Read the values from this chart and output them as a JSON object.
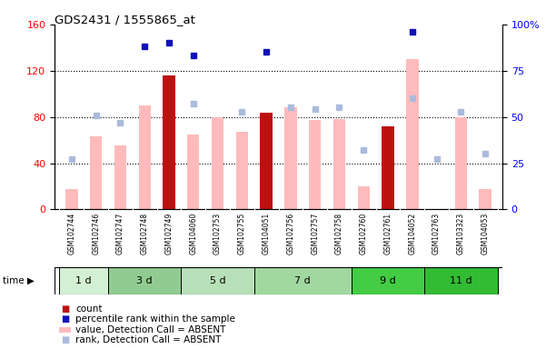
{
  "title": "GDS2431 / 1555865_at",
  "samples": [
    "GSM102744",
    "GSM102746",
    "GSM102747",
    "GSM102748",
    "GSM102749",
    "GSM104060",
    "GSM102753",
    "GSM102755",
    "GSM104051",
    "GSM102756",
    "GSM102757",
    "GSM102758",
    "GSM102760",
    "GSM102761",
    "GSM104052",
    "GSM102763",
    "GSM103323",
    "GSM104053"
  ],
  "time_groups": [
    {
      "label": "1 d",
      "start": 0,
      "end": 2,
      "color": "#d4f0d4"
    },
    {
      "label": "3 d",
      "start": 2,
      "end": 5,
      "color": "#90cc90"
    },
    {
      "label": "5 d",
      "start": 5,
      "end": 8,
      "color": "#b8e0b8"
    },
    {
      "label": "7 d",
      "start": 8,
      "end": 12,
      "color": "#a0d8a0"
    },
    {
      "label": "9 d",
      "start": 12,
      "end": 15,
      "color": "#44cc44"
    },
    {
      "label": "11 d",
      "start": 15,
      "end": 18,
      "color": "#33bb33"
    }
  ],
  "count_values": [
    0,
    0,
    0,
    0,
    116,
    0,
    0,
    0,
    84,
    0,
    0,
    0,
    0,
    72,
    0,
    0,
    0,
    0
  ],
  "percentile_values": [
    0,
    0,
    0,
    88,
    90,
    83,
    0,
    0,
    85,
    0,
    0,
    0,
    0,
    0,
    96,
    0,
    0,
    0
  ],
  "absent_value": [
    18,
    63,
    55,
    90,
    0,
    65,
    80,
    67,
    0,
    88,
    77,
    78,
    20,
    0,
    130,
    0,
    80,
    18
  ],
  "absent_rank": [
    27,
    51,
    47,
    0,
    0,
    57,
    0,
    53,
    0,
    55,
    54,
    55,
    32,
    0,
    60,
    27,
    53,
    30
  ],
  "ylim_left": [
    0,
    160
  ],
  "ylim_right": [
    0,
    100
  ],
  "yticks_left": [
    0,
    40,
    80,
    120,
    160
  ],
  "yticks_right": [
    0,
    25,
    50,
    75,
    100
  ],
  "ytick_labels_right": [
    "0",
    "25",
    "50",
    "75",
    "100%"
  ],
  "color_count": "#bb1111",
  "color_percentile": "#1111bb",
  "color_absent_value": "#ffbbbb",
  "color_absent_rank": "#aabbdd",
  "bar_width": 0.5
}
